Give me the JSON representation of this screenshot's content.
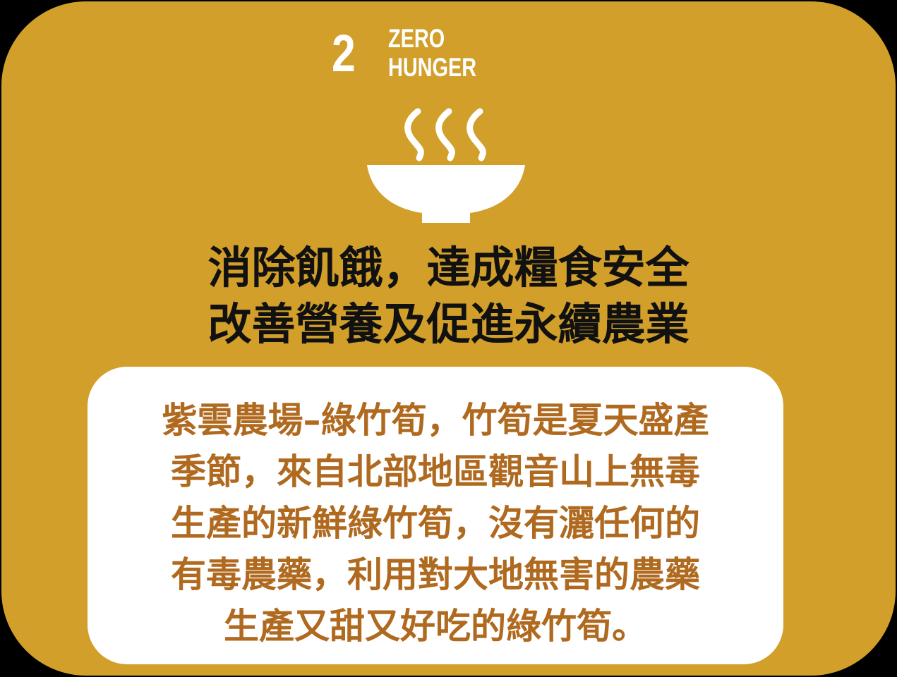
{
  "goal": {
    "number": "2",
    "name_line1": "ZERO",
    "name_line2": "HUNGER",
    "icon": "steaming-bowl-icon"
  },
  "headline": {
    "line1": "消除飢餓，達成糧食安全",
    "line2": "改善營養及促進永續農業"
  },
  "info": {
    "lines": [
      "紫雲農場–綠竹筍，竹筍是夏天盛產",
      "季節，來自北部地區觀音山上無毒",
      "生產的新鮮綠竹筍，沒有灑任何的",
      "有毒農藥，利用對大地無害的農藥",
      "生產又甜又好吃的綠竹筍。"
    ]
  },
  "colors": {
    "card_background": "#D19F2A",
    "info_text": "#B06A20",
    "headline_text": "#111111",
    "info_box": "#FFFFFF"
  }
}
